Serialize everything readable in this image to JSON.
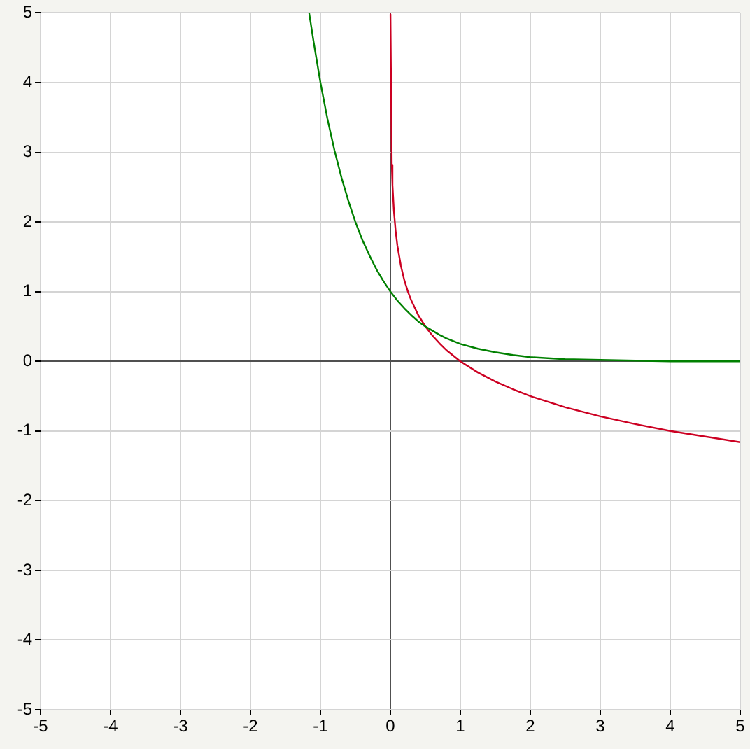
{
  "chart_data": {
    "type": "line",
    "series": [
      {
        "color": "#008000",
        "x": [
          -1.16,
          -1.1,
          -1.0,
          -0.9,
          -0.8,
          -0.7,
          -0.6,
          -0.5,
          -0.4,
          -0.3,
          -0.2,
          -0.1,
          0,
          0.1,
          0.2,
          0.3,
          0.4,
          0.5,
          0.6,
          0.7,
          0.8,
          0.9,
          1.0,
          1.25,
          1.5,
          1.75,
          2,
          2.5,
          3,
          3.5,
          4,
          5
        ],
        "values": [
          4.99,
          4.6,
          4.0,
          3.48,
          3.03,
          2.64,
          2.3,
          2.0,
          1.74,
          1.52,
          1.32,
          1.15,
          1.0,
          0.87,
          0.76,
          0.66,
          0.57,
          0.5,
          0.44,
          0.38,
          0.33,
          0.29,
          0.25,
          0.18,
          0.13,
          0.09,
          0.06,
          0.03,
          0.02,
          0.01,
          0.0,
          0.0
        ]
      },
      {
        "color": "#cc0022",
        "x": [
          0.001,
          0.02,
          0.03,
          0.05,
          0.075,
          0.1,
          0.15,
          0.2,
          0.25,
          0.3,
          0.4,
          0.5,
          0.6,
          0.7,
          0.8,
          0.9,
          1.0,
          1.25,
          1.5,
          1.75,
          2.0,
          2.5,
          3.0,
          3.5,
          4.0,
          4.5,
          5.0
        ],
        "values": [
          4.98,
          2.82,
          2.53,
          2.16,
          1.87,
          1.66,
          1.37,
          1.16,
          1.0,
          0.87,
          0.66,
          0.5,
          0.37,
          0.26,
          0.16,
          0.08,
          0.0,
          -0.16,
          -0.29,
          -0.4,
          -0.5,
          -0.66,
          -0.79,
          -0.9,
          -1.0,
          -1.08,
          -1.16
        ]
      }
    ],
    "xlim": [
      -5,
      5
    ],
    "ylim": [
      -5,
      5
    ],
    "xticks": [
      -5,
      -4,
      -3,
      -2,
      -1,
      0,
      1,
      2,
      3,
      4,
      5
    ],
    "yticks": [
      -5,
      -4,
      -3,
      -2,
      -1,
      0,
      1,
      2,
      3,
      4,
      5
    ],
    "grid": true,
    "marker": "none",
    "line_style": "solid"
  }
}
